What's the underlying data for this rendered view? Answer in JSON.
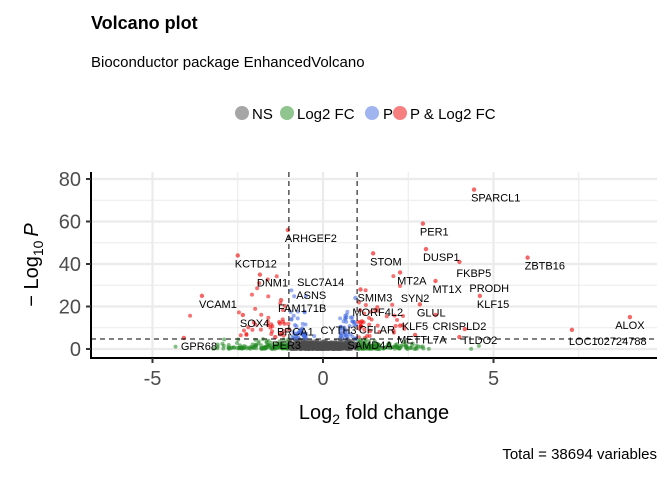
{
  "chart_data": {
    "type": "scatter",
    "title": "Volcano plot",
    "subtitle": "Bioconductor package EnhancedVolcano",
    "xlabel_base": "Log",
    "xlabel_sub": "2",
    "xlabel_rest": " fold change",
    "ylabel_base": "− Log",
    "ylabel_sub": "10",
    "ylabel_italic": "P",
    "xlim": [
      -6.85,
      9.8
    ],
    "ylim": [
      -4,
      83
    ],
    "xticks": [
      -5,
      0,
      5
    ],
    "yticks": [
      0,
      20,
      40,
      60,
      80
    ],
    "fc_cutoff": 1,
    "p_cutoff_log10": 4.7,
    "grid": true,
    "legend_position": "top",
    "legend": [
      {
        "label": "NS",
        "color": "#4d4d4d"
      },
      {
        "label": "Log2 FC",
        "color": "#228b22"
      },
      {
        "label": "P",
        "color": "#4169e1"
      },
      {
        "label": "P & Log2 FC",
        "color": "#ee0000"
      }
    ],
    "caption": "Total = 38694 variables",
    "labeled_points": [
      {
        "gene": "SPARCL1",
        "x": 4.43,
        "y": 75
      },
      {
        "gene": "PER1",
        "x": 2.93,
        "y": 59
      },
      {
        "gene": "ARHGEF2",
        "x": -1.03,
        "y": 56
      },
      {
        "gene": "DUSP1",
        "x": 3.02,
        "y": 47
      },
      {
        "gene": "ZBTB16",
        "x": 6.0,
        "y": 43
      },
      {
        "gene": "STOM",
        "x": 1.47,
        "y": 45
      },
      {
        "gene": "KCTD12",
        "x": -2.5,
        "y": 44
      },
      {
        "gene": "FKBP5",
        "x": 4.0,
        "y": 41
      },
      {
        "gene": "MT2A",
        "x": 2.26,
        "y": 36
      },
      {
        "gene": "DNM1",
        "x": -1.85,
        "y": 35
      },
      {
        "gene": "MT1X",
        "x": 3.3,
        "y": 32
      },
      {
        "gene": "SMIM3",
        "x": 1.1,
        "y": 28
      },
      {
        "gene": "VCAM1",
        "x": -3.55,
        "y": 25
      },
      {
        "gene": "FAM171B",
        "x": -1.23,
        "y": 23
      },
      {
        "gene": "MORF4L2",
        "x": 0.95,
        "y": 24
      },
      {
        "gene": "GLUL",
        "x": 2.84,
        "y": 21
      },
      {
        "gene": "KLF15",
        "x": 4.6,
        "y": 25
      },
      {
        "gene": "ALOX",
        "x": 9.0,
        "y": 15
      },
      {
        "gene": "SOX4",
        "x": -2.35,
        "y": 16
      },
      {
        "gene": "CRISPLD2",
        "x": 3.3,
        "y": 16
      },
      {
        "gene": "BRCA1",
        "x": -1.26,
        "y": 12
      },
      {
        "gene": "CFLAR",
        "x": 1.14,
        "y": 13
      },
      {
        "gene": "TLDO2",
        "x": 4.16,
        "y": 9.4
      },
      {
        "gene": "METTL7A",
        "x": 2.26,
        "y": 11
      },
      {
        "gene": "LOC102724788",
        "x": 7.3,
        "y": 9
      },
      {
        "gene": "SAMD4A",
        "x": 1.38,
        "y": 8.5
      },
      {
        "gene": "SYN2",
        "x": 2.7,
        "y": 6.6
      },
      {
        "gene": "PRODH",
        "x": 4.0,
        "y": 5.6
      },
      {
        "gene": "GPR68",
        "x": -4.08,
        "y": 5.2
      },
      {
        "gene": "PER3",
        "x": -1.4,
        "y": 5.6
      },
      {
        "gene": "ASNS",
        "x": -0.9,
        "y": 5.2
      },
      {
        "gene": "SLC7A14",
        "x": -0.67,
        "y": 2
      },
      {
        "gene": "CYTH3",
        "x": 1.1,
        "y": 4.2
      },
      {
        "gene": "KLF5",
        "x": 2.4,
        "y": 3.3
      }
    ]
  }
}
